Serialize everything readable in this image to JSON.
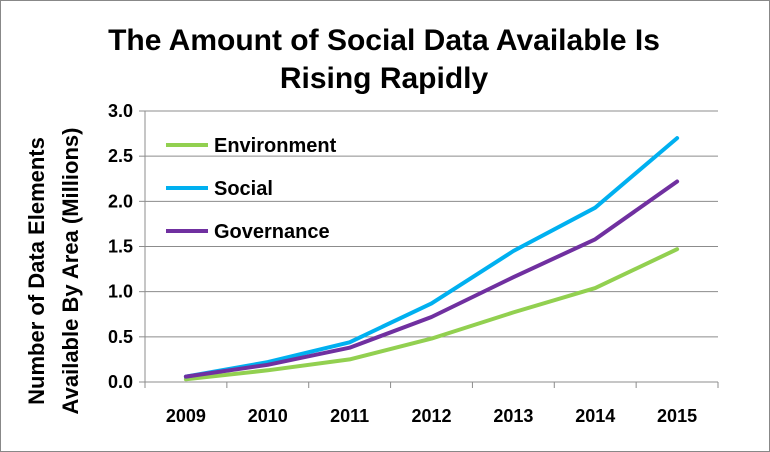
{
  "chart_data": {
    "type": "line",
    "title_lines": [
      "The Amount of Social Data Available Is",
      "Rising Rapidly"
    ],
    "ylabel_lines": [
      "Number of Data Elements",
      "Available By Area (Millions)"
    ],
    "xlabel": "",
    "categories": [
      "2009",
      "2010",
      "2011",
      "2012",
      "2013",
      "2014",
      "2015"
    ],
    "ylim": [
      0,
      3
    ],
    "yticks": [
      "0.0",
      "0.5",
      "1.0",
      "1.5",
      "2.0",
      "2.5",
      "3.0"
    ],
    "grid": true,
    "legend_position": "top-left",
    "series": [
      {
        "name": "Environment",
        "color": "#92D050",
        "values": [
          0.03,
          0.13,
          0.25,
          0.48,
          0.77,
          1.04,
          1.47
        ]
      },
      {
        "name": "Social",
        "color": "#00B0F0",
        "values": [
          0.06,
          0.22,
          0.44,
          0.87,
          1.45,
          1.93,
          2.7
        ]
      },
      {
        "name": "Governance",
        "color": "#7030A0",
        "values": [
          0.06,
          0.19,
          0.38,
          0.72,
          1.16,
          1.58,
          2.22
        ]
      }
    ]
  }
}
